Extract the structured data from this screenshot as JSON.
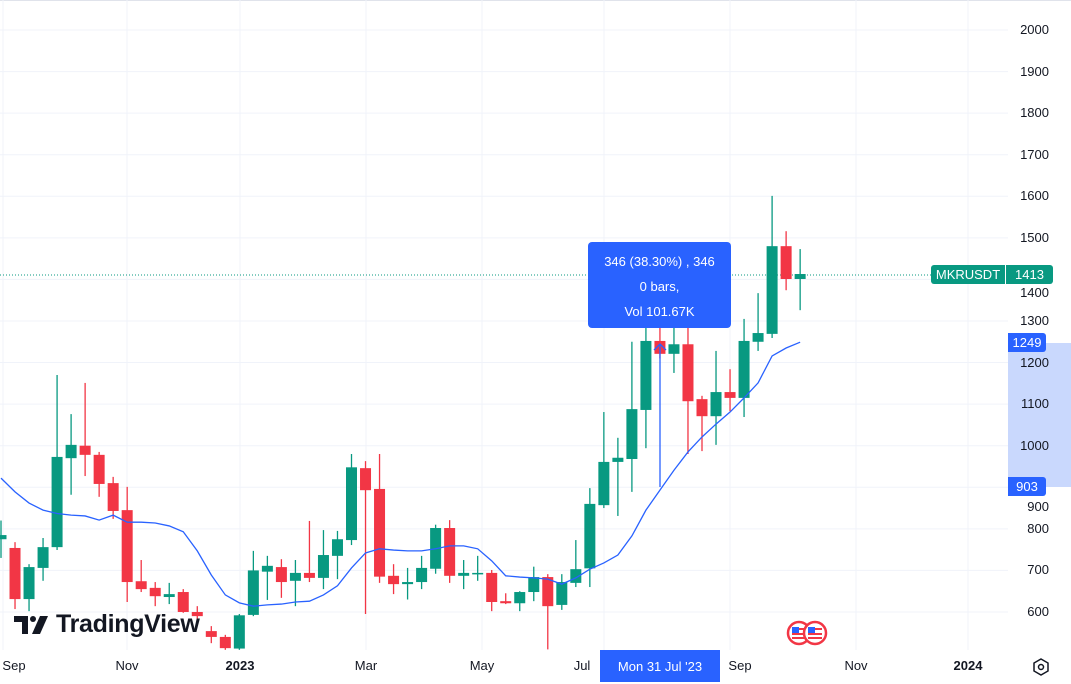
{
  "symbol": {
    "name": "MKRUSDT",
    "last_price": "1413"
  },
  "measure": {
    "line1": "346 (38.30%) , 346",
    "line2": "0 bars,",
    "line3": "Vol 101.67K",
    "from_price": "903",
    "to_price": "1249",
    "date_label": "Mon 31 Jul '23"
  },
  "logo": "TradingView",
  "colors": {
    "up": "#089981",
    "down": "#f23645",
    "ma": "#2962ff",
    "measure": "#2962ff",
    "band": "#c9d8fd"
  },
  "icons": {
    "settings": "gear-icon",
    "events": "us-flag-economic-events-icon"
  },
  "chart_data": {
    "type": "candlestick",
    "interval": "weekly",
    "ylim": [
      520,
      2020
    ],
    "grid": true,
    "y_ticks": [
      "2000",
      "1900",
      "1800",
      "1700",
      "1600",
      "1500",
      "1400",
      "1300",
      "1200",
      "1100",
      "1000",
      "900",
      "800",
      "700",
      "600"
    ],
    "x_ticks": [
      "Sep",
      "Nov",
      "2023",
      "Mar",
      "May",
      "Jul",
      "Sep",
      "Nov",
      "2024"
    ],
    "ohlc_fields": [
      "open",
      "high",
      "low",
      "close"
    ],
    "candles": [
      [
        775,
        820,
        730,
        785
      ],
      [
        754,
        768,
        607,
        631
      ],
      [
        631,
        715,
        602,
        708
      ],
      [
        706,
        778,
        675,
        756
      ],
      [
        756,
        1170,
        749,
        973
      ],
      [
        970,
        1076,
        882,
        1002
      ],
      [
        1000,
        1151,
        927,
        978
      ],
      [
        978,
        985,
        877,
        908
      ],
      [
        910,
        925,
        824,
        843
      ],
      [
        845,
        901,
        624,
        672
      ],
      [
        674,
        725,
        648,
        655
      ],
      [
        658,
        672,
        614,
        638
      ],
      [
        636,
        670,
        619,
        643
      ],
      [
        648,
        655,
        598,
        600
      ],
      [
        600,
        614,
        570,
        590
      ],
      [
        554,
        566,
        525,
        540
      ],
      [
        540,
        545,
        509,
        513
      ],
      [
        512,
        595,
        509,
        592
      ],
      [
        593,
        747,
        590,
        700
      ],
      [
        697,
        735,
        629,
        711
      ],
      [
        708,
        727,
        634,
        672
      ],
      [
        675,
        725,
        614,
        694
      ],
      [
        694,
        819,
        672,
        682
      ],
      [
        682,
        797,
        655,
        737
      ],
      [
        735,
        795,
        679,
        775
      ],
      [
        773,
        980,
        761,
        948
      ],
      [
        946,
        963,
        595,
        893
      ],
      [
        896,
        980,
        670,
        685
      ],
      [
        687,
        715,
        643,
        667
      ],
      [
        667,
        706,
        630,
        672
      ],
      [
        672,
        735,
        655,
        706
      ],
      [
        704,
        810,
        692,
        802
      ],
      [
        802,
        821,
        670,
        687
      ],
      [
        687,
        725,
        655,
        694
      ],
      [
        692,
        735,
        675,
        694
      ],
      [
        694,
        701,
        602,
        624
      ],
      [
        626,
        645,
        619,
        621
      ],
      [
        621,
        650,
        602,
        648
      ],
      [
        648,
        709,
        626,
        684
      ],
      [
        684,
        691,
        510,
        614
      ],
      [
        617,
        691,
        605,
        672
      ],
      [
        670,
        773,
        660,
        703
      ],
      [
        705,
        898,
        660,
        860
      ],
      [
        857,
        1081,
        850,
        961
      ],
      [
        961,
        1019,
        831,
        971
      ],
      [
        968,
        1250,
        889,
        1088
      ],
      [
        1086,
        1300,
        994,
        1252
      ],
      [
        1252,
        1290,
        1210,
        1221
      ],
      [
        1221,
        1290,
        1175,
        1244
      ],
      [
        1244,
        1300,
        980,
        1107
      ],
      [
        1112,
        1120,
        987,
        1071
      ],
      [
        1071,
        1228,
        1002,
        1129
      ],
      [
        1129,
        1184,
        1083,
        1115
      ],
      [
        1115,
        1305,
        1069,
        1252
      ],
      [
        1250,
        1367,
        1228,
        1271
      ],
      [
        1269,
        1601,
        1259,
        1480
      ],
      [
        1480,
        1516,
        1374,
        1401
      ],
      [
        1401,
        1473,
        1326,
        1413
      ]
    ],
    "moving_average": [
      922,
      889,
      862,
      845,
      837,
      833,
      831,
      821,
      833,
      816,
      816,
      814,
      807,
      793,
      747,
      689,
      641,
      622,
      614,
      617,
      619,
      624,
      626,
      641,
      663,
      706,
      742,
      752,
      749,
      747,
      747,
      752,
      759,
      759,
      752,
      723,
      687,
      684,
      682,
      679,
      667,
      682,
      703,
      718,
      737,
      783,
      845,
      893,
      941,
      985,
      1021,
      1052,
      1081,
      1115,
      1151,
      1216,
      1235,
      1249
    ]
  }
}
